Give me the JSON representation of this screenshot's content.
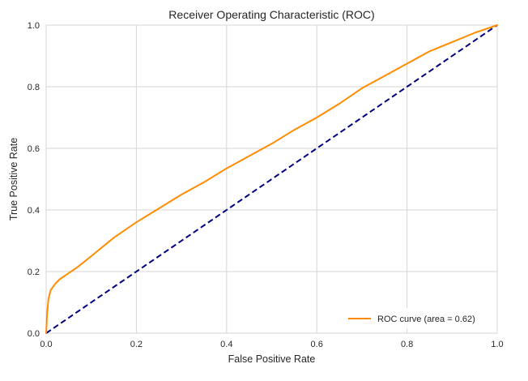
{
  "chart_data": {
    "type": "line",
    "title": "Receiver Operating Characteristic (ROC)",
    "xlabel": "False Positive Rate",
    "ylabel": "True Positive Rate",
    "xlim": [
      0.0,
      1.0
    ],
    "ylim": [
      0.0,
      1.0
    ],
    "xticks": [
      "0.0",
      "0.2",
      "0.4",
      "0.6",
      "0.8",
      "1.0"
    ],
    "yticks": [
      "0.0",
      "0.2",
      "0.4",
      "0.6",
      "0.8",
      "1.0"
    ],
    "grid": true,
    "legend_position": "lower-right",
    "series": [
      {
        "name": "ROC curve (area = 0.62)",
        "color": "#ff8c00",
        "style": "solid",
        "x": [
          0.0,
          0.002,
          0.005,
          0.01,
          0.02,
          0.03,
          0.05,
          0.07,
          0.1,
          0.15,
          0.2,
          0.25,
          0.3,
          0.35,
          0.4,
          0.45,
          0.5,
          0.55,
          0.6,
          0.65,
          0.7,
          0.75,
          0.8,
          0.85,
          0.9,
          0.95,
          1.0
        ],
        "y": [
          0.0,
          0.06,
          0.11,
          0.14,
          0.16,
          0.175,
          0.195,
          0.215,
          0.25,
          0.31,
          0.36,
          0.405,
          0.45,
          0.49,
          0.535,
          0.575,
          0.615,
          0.66,
          0.7,
          0.745,
          0.795,
          0.835,
          0.875,
          0.915,
          0.945,
          0.975,
          1.0
        ]
      },
      {
        "color": "#000080",
        "style": "dashed",
        "x": [
          0.0,
          1.0
        ],
        "y": [
          0.0,
          1.0
        ]
      }
    ]
  }
}
